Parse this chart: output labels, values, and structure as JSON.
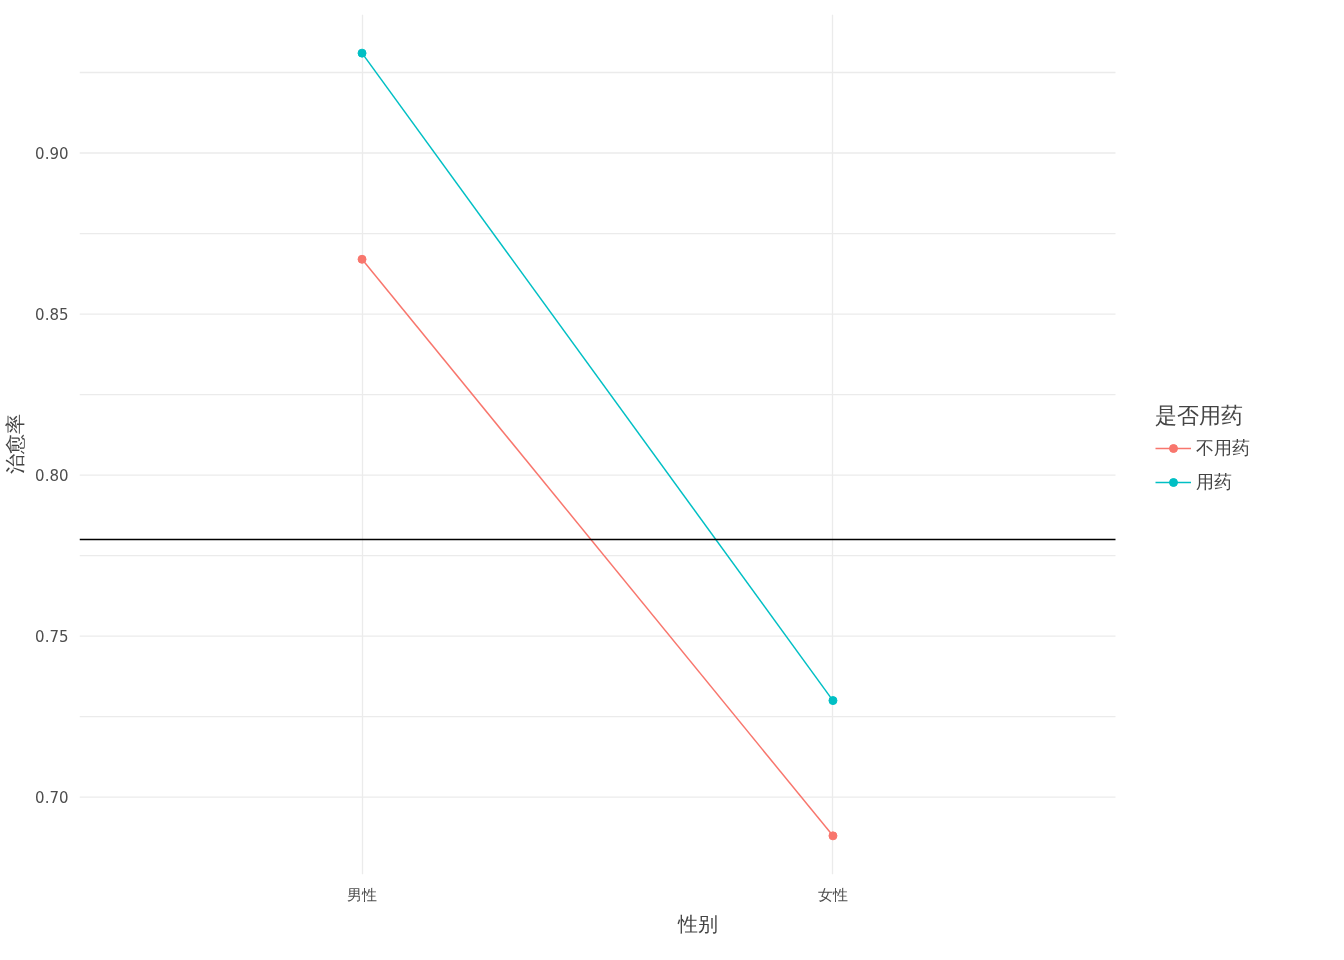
{
  "chart_data": {
    "type": "line",
    "xlabel": "性别",
    "ylabel": "治愈率",
    "legend_title": "是否用药",
    "categories": [
      "男性",
      "女性"
    ],
    "series": [
      {
        "name": "不用药",
        "color": "#f8766d",
        "values": [
          0.867,
          0.688
        ]
      },
      {
        "name": "用药",
        "color": "#00bfc4",
        "values": [
          0.931,
          0.73
        ]
      }
    ],
    "ylim": [
      0.676,
      0.943
    ],
    "yticks": [
      {
        "value": 0.7,
        "label": "0.70"
      },
      {
        "value": 0.725,
        "label": null
      },
      0.75,
      {
        "value": 0.775,
        "label": null
      },
      {
        "value": 0.8,
        "label": "0.80"
      },
      {
        "value": 0.825,
        "label": null
      },
      0.85,
      {
        "value": 0.875,
        "label": null
      },
      {
        "value": 0.9,
        "label": "0.90"
      },
      {
        "value": 0.925,
        "label": null
      }
    ],
    "ref_lines": [
      {
        "axis": "y",
        "value": 0.78,
        "color": "#000000"
      }
    ],
    "grid": true,
    "legend": "right",
    "marker": "circle",
    "line_style": "solid"
  }
}
